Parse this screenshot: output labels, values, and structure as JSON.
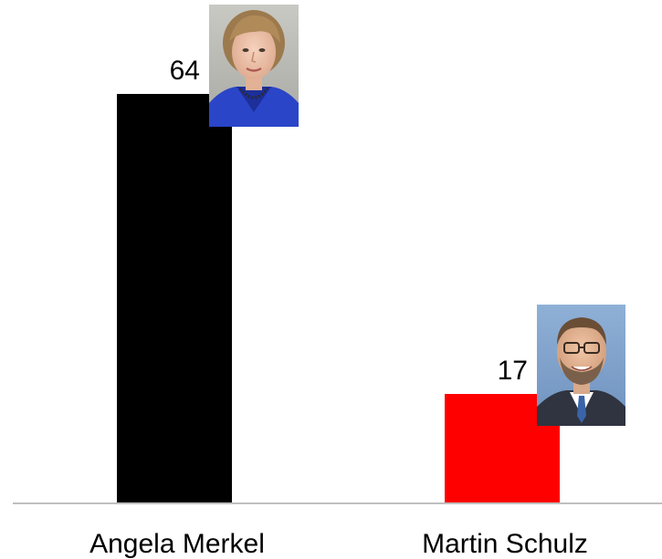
{
  "chart_data": {
    "type": "bar",
    "categories": [
      "Angela Merkel",
      "Martin Schulz"
    ],
    "values": [
      64,
      17
    ],
    "bar_colors": [
      "#000000",
      "#ff0000"
    ],
    "axis_color": "#bfbfbf",
    "data_labels": [
      "64",
      "17"
    ],
    "portraits": [
      "portrait-photo-icon",
      "portrait-photo-icon"
    ],
    "title": "",
    "xlabel": "",
    "ylabel": "",
    "ylim": [
      0,
      64
    ],
    "grid": false,
    "legend": "none"
  }
}
